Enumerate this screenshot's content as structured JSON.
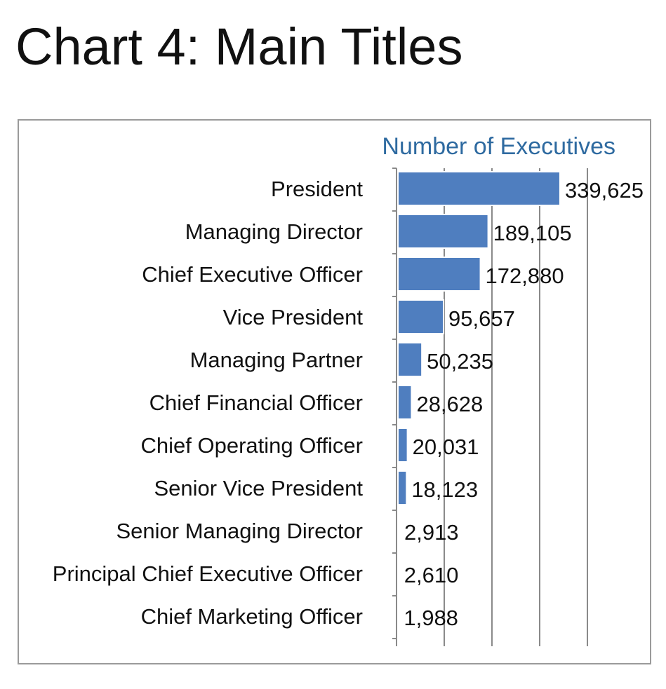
{
  "page": {
    "title": "Chart 4: Main Titles"
  },
  "colors": {
    "bar_fill": "#4f7ebf",
    "bar_stroke": "#ffffff",
    "gridline": "#8a8a8a",
    "axis_title": "#2e6aa0",
    "frame": "#9a9a9a"
  },
  "chart_data": {
    "type": "bar",
    "orientation": "horizontal",
    "title": "",
    "xlabel": "Number of Executives",
    "ylabel": "",
    "xlim": [
      0,
      400000
    ],
    "tick_step": 100000,
    "grid": true,
    "legend": "none",
    "categories": [
      "President",
      "Managing Director",
      "Chief Executive Officer",
      "Vice President",
      "Managing Partner",
      "Chief Financial Officer",
      "Chief Operating Officer",
      "Senior Vice President",
      "Senior Managing Director",
      "Principal Chief Executive Officer",
      "Chief Marketing Officer"
    ],
    "values": [
      339625,
      189105,
      172880,
      95657,
      50235,
      28628,
      20031,
      18123,
      2913,
      2610,
      1988
    ],
    "value_labels": [
      "339,625",
      "189,105",
      "172,880",
      "95,657",
      "50,235",
      "28,628",
      "20,031",
      "18,123",
      "2,913",
      "2,610",
      "1,988"
    ]
  }
}
